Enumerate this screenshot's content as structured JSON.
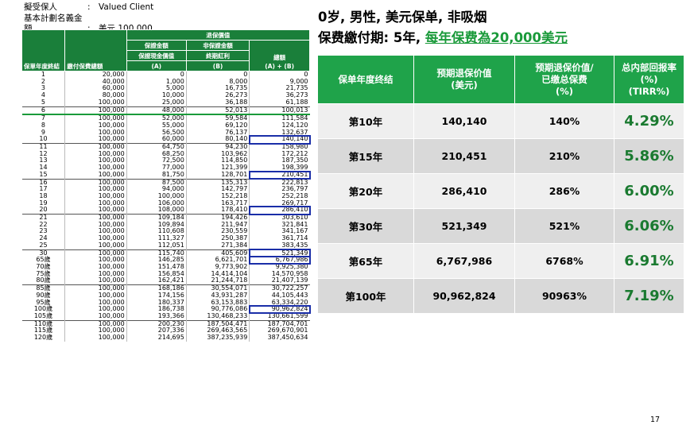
{
  "info": {
    "rows": [
      {
        "key": "擬受保人",
        "colon": ":",
        "value": "Valued Client"
      },
      {
        "key": "基本計劃名義金額",
        "colon": ":",
        "value": "美元 100,000"
      }
    ]
  },
  "left_table": {
    "header": {
      "group": "退保價值",
      "guaranteed": "保證金額",
      "non_guaranteed": "非保證金額",
      "col1": "保單年度終結",
      "col2": "繳付保費總額",
      "col3_name": "保證現金價值",
      "col3_letter": "(A)",
      "col4_name": "終期紅利",
      "col4_letter": "(B)",
      "col5_name": "總額",
      "col5_letter": "(A) + (B)"
    },
    "rows": [
      [
        "1",
        "20,000",
        "0",
        "0",
        "0"
      ],
      [
        "2",
        "40,000",
        "1,000",
        "8,000",
        "9,000"
      ],
      [
        "3",
        "60,000",
        "5,000",
        "16,735",
        "21,735"
      ],
      [
        "4",
        "80,000",
        "10,000",
        "26,273",
        "36,273"
      ],
      [
        "5",
        "100,000",
        "25,000",
        "36,188",
        "61,188"
      ],
      [
        "6",
        "100,000",
        "48,000",
        "52,013",
        "100,013"
      ],
      [
        "7",
        "100,000",
        "52,000",
        "59,584",
        "111,584"
      ],
      [
        "8",
        "100,000",
        "55,000",
        "69,120",
        "124,120"
      ],
      [
        "9",
        "100,000",
        "56,500",
        "76,137",
        "132,637"
      ],
      [
        "10",
        "100,000",
        "60,000",
        "80,140",
        "140,140"
      ],
      [
        "11",
        "100,000",
        "64,750",
        "94,230",
        "158,980"
      ],
      [
        "12",
        "100,000",
        "68,250",
        "103,962",
        "172,212"
      ],
      [
        "13",
        "100,000",
        "72,500",
        "114,850",
        "187,350"
      ],
      [
        "14",
        "100,000",
        "77,000",
        "121,399",
        "198,399"
      ],
      [
        "15",
        "100,000",
        "81,750",
        "128,701",
        "210,451"
      ],
      [
        "16",
        "100,000",
        "87,500",
        "135,313",
        "222,813"
      ],
      [
        "17",
        "100,000",
        "94,000",
        "142,797",
        "236,797"
      ],
      [
        "18",
        "100,000",
        "100,000",
        "152,218",
        "252,218"
      ],
      [
        "19",
        "100,000",
        "106,000",
        "163,717",
        "269,717"
      ],
      [
        "20",
        "100,000",
        "108,000",
        "178,410",
        "286,410"
      ],
      [
        "21",
        "100,000",
        "109,184",
        "194,426",
        "303,610"
      ],
      [
        "22",
        "100,000",
        "109,894",
        "211,947",
        "321,841"
      ],
      [
        "23",
        "100,000",
        "110,608",
        "230,559",
        "341,167"
      ],
      [
        "24",
        "100,000",
        "111,327",
        "250,387",
        "361,714"
      ],
      [
        "25",
        "100,000",
        "112,051",
        "271,384",
        "383,435"
      ],
      [
        "30",
        "100,000",
        "115,740",
        "405,609",
        "521,349"
      ],
      [
        "65歲",
        "100,000",
        "146,285",
        "6,621,701",
        "6,767,986"
      ],
      [
        "70歲",
        "100,000",
        "151,478",
        "9,773,902",
        "9,925,380"
      ],
      [
        "75歲",
        "100,000",
        "156,854",
        "14,414,104",
        "14,570,958"
      ],
      [
        "80歲",
        "100,000",
        "162,421",
        "21,244,718",
        "21,407,139"
      ],
      [
        "85歲",
        "100,000",
        "168,186",
        "30,554,071",
        "30,722,257"
      ],
      [
        "90歲",
        "100,000",
        "174,156",
        "43,931,287",
        "44,105,443"
      ],
      [
        "95歲",
        "100,000",
        "180,337",
        "63,153,883",
        "63,334,220"
      ],
      [
        "100歲",
        "100,000",
        "186,738",
        "90,776,086",
        "90,962,824"
      ],
      [
        "105歲",
        "100,000",
        "193,366",
        "130,468,233",
        "130,661,599"
      ],
      [
        "110歲",
        "100,000",
        "200,230",
        "187,504,471",
        "187,704,701"
      ],
      [
        "115歲",
        "100,000",
        "207,336",
        "269,463,565",
        "269,670,901"
      ],
      [
        "120歲",
        "100,000",
        "214,695",
        "387,235,939",
        "387,450,634"
      ]
    ]
  },
  "title": {
    "line1": "0岁, 男性, 美元保单, 非吸烟",
    "line2_prefix": "保费繳付期: 5年, ",
    "line2_highlight": "每年保费為20,000美元"
  },
  "right_table": {
    "headers": [
      "保单年度终结",
      "预期退保价值\n(美元)",
      "预期退保价值/\n已缴总保费\n(%)",
      "总内部回报率(%)\n(TIRR%)"
    ],
    "rows": [
      [
        "第10年",
        "140,140",
        "140%",
        "4.29%"
      ],
      [
        "第15年",
        "210,451",
        "210%",
        "5.86%"
      ],
      [
        "第20年",
        "286,410",
        "286%",
        "6.00%"
      ],
      [
        "第30年",
        "521,349",
        "521%",
        "6.06%"
      ],
      [
        "第65年",
        "6,767,986",
        "6768%",
        "6.91%"
      ],
      [
        "第100年",
        "90,962,824",
        "90963%",
        "7.19%"
      ]
    ]
  },
  "page_number": "17",
  "colors": {
    "accent_green": "#1fa34a",
    "highlight_blue": "#1a2ea8"
  }
}
